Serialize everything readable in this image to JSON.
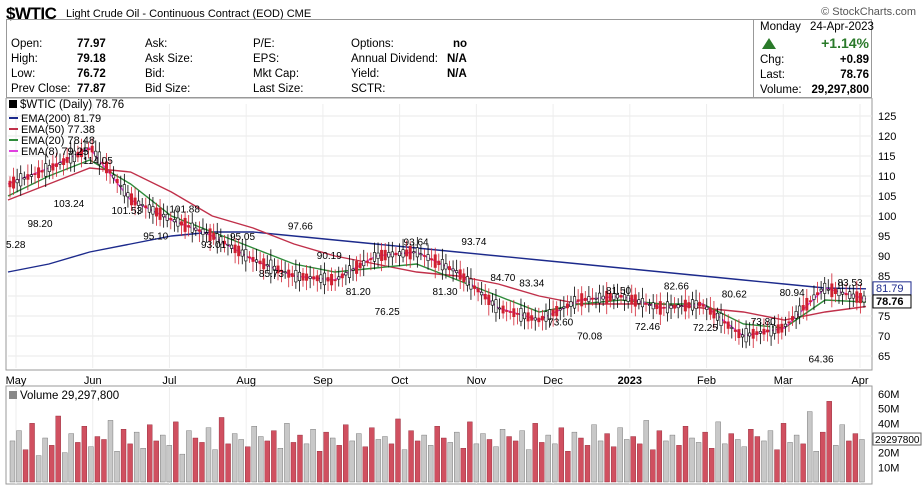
{
  "header": {
    "symbol": "$WTIC",
    "name": "Light Crude Oil - Continuous Contract (EOD)",
    "exchange": "CME",
    "brand": "© StockCharts.com"
  },
  "quote": {
    "labels_col1": [
      "Open:",
      "High:",
      "Low:",
      "Prev Close:"
    ],
    "values_col1": [
      "77.97",
      "79.18",
      "76.72",
      "77.87"
    ],
    "labels_col2": [
      "Ask:",
      "Ask Size:",
      "Bid:",
      "Bid Size:"
    ],
    "labels_col3": [
      "P/E:",
      "EPS:",
      "Mkt Cap:",
      "Last Size:"
    ],
    "labels_col4": [
      "Options:",
      "Annual Dividend:",
      "Yield:",
      "SCTR:"
    ],
    "values_col4": [
      "no",
      "N/A",
      "N/A",
      ""
    ],
    "day": "Monday",
    "date": "24-Apr-2023",
    "pct_change": "+1.14%",
    "chg_label": "Chg:",
    "chg_value": "+0.89",
    "last_label": "Last:",
    "last_value": "78.76",
    "volume_label": "Volume:",
    "volume_value": "29,297,800"
  },
  "legend": {
    "title": "$WTIC (Daily) 78.76",
    "ema200": "EMA(200) 81.79",
    "ema50": "EMA(50) 77.38",
    "ema20": "EMA(20) 78.48",
    "ema8": "EMA(8) 79.25"
  },
  "volume_legend": "Volume 29,297,800",
  "colors": {
    "ema200": "#1c2a8c",
    "ema50": "#c0304a",
    "ema20": "#2e8b3a",
    "ema8": "#e040e0",
    "up_bar": "#c8c8c8",
    "down_bar": "#d05060",
    "candle_up": "#000000",
    "candle_down": "#d02030"
  },
  "chart_data": {
    "type": "line",
    "title": "$WTIC (Daily) 78.76",
    "xlabel": "",
    "ylabel": "",
    "ylim": [
      62,
      128
    ],
    "y_ticks": [
      65,
      70,
      75,
      80,
      85,
      90,
      95,
      100,
      105,
      110,
      115,
      120,
      125
    ],
    "x_ticks": [
      "May",
      "Jun",
      "Jul",
      "Aug",
      "Sep",
      "Oct",
      "Nov",
      "Dec",
      "2023",
      "Feb",
      "Mar",
      "Apr"
    ],
    "price_label": "78.76",
    "ema200_label": "81.79",
    "series": [
      {
        "name": "EMA(200) 81.79",
        "values": [
          86,
          88,
          91,
          93,
          95,
          96,
          96,
          95,
          94,
          93,
          92,
          91,
          90,
          89,
          88,
          87,
          86,
          85,
          84,
          83,
          82,
          81.79
        ]
      },
      {
        "name": "EMA(50) 77.38",
        "values": [
          104,
          108,
          112,
          111,
          106,
          100,
          97,
          93,
          90,
          88,
          86,
          85,
          83,
          80,
          78,
          78,
          78,
          77,
          76,
          74,
          76,
          77.38
        ]
      },
      {
        "name": "EMA(20) 78.48",
        "values": [
          105,
          110,
          114,
          108,
          100,
          96,
          92,
          88,
          86,
          87,
          88,
          84,
          80,
          76,
          78,
          79,
          78,
          78,
          73,
          72,
          79,
          78.48
        ]
      },
      {
        "name": "EMA(8) 79.25",
        "values": [
          108,
          112,
          117,
          104,
          99,
          95,
          89,
          85,
          84,
          90,
          91,
          86,
          77,
          74,
          79,
          80,
          77,
          78,
          70,
          72,
          82,
          79.25
        ]
      }
    ],
    "price_points": [
      {
        "label": "98.20",
        "value": 98.2
      },
      {
        "label": "103.24",
        "value": 103.24
      },
      {
        "label": "114.05",
        "value": 114.05
      },
      {
        "label": "101.53",
        "value": 101.53
      },
      {
        "label": "95.10",
        "value": 95.1
      },
      {
        "label": "101.88",
        "value": 101.88
      },
      {
        "label": "93.01",
        "value": 93.01
      },
      {
        "label": "95.05",
        "value": 95.05
      },
      {
        "label": "85.73",
        "value": 85.73
      },
      {
        "label": "97.66",
        "value": 97.66
      },
      {
        "label": "90.19",
        "value": 90.19
      },
      {
        "label": "81.20",
        "value": 81.2
      },
      {
        "label": "76.25",
        "value": 76.25
      },
      {
        "label": "93.64",
        "value": 93.64
      },
      {
        "label": "81.30",
        "value": 81.3
      },
      {
        "label": "93.74",
        "value": 93.74
      },
      {
        "label": "84.70",
        "value": 84.7
      },
      {
        "label": "83.34",
        "value": 83.34
      },
      {
        "label": "73.60",
        "value": 73.6
      },
      {
        "label": "70.08",
        "value": 70.08
      },
      {
        "label": "81.50",
        "value": 81.5
      },
      {
        "label": "72.46",
        "value": 72.46
      },
      {
        "label": "82.66",
        "value": 82.66
      },
      {
        "label": "72.25",
        "value": 72.25
      },
      {
        "label": "80.62",
        "value": 80.62
      },
      {
        "label": "73.80",
        "value": 73.8
      },
      {
        "label": "80.94",
        "value": 80.94
      },
      {
        "label": "64.36",
        "value": 64.36
      },
      {
        "label": "83.53",
        "value": 83.53
      }
    ],
    "edge_label": "5.28",
    "volume": {
      "ylim": [
        0,
        60
      ],
      "y_ticks": [
        "60M",
        "50M",
        "40M",
        "30M",
        "20M",
        "10M"
      ],
      "last_label": "29297800",
      "bars": [
        28,
        35,
        22,
        40,
        18,
        30,
        25,
        45,
        20,
        33,
        27,
        38,
        24,
        31,
        29,
        42,
        21,
        36,
        26,
        34,
        23,
        39,
        28,
        32,
        25,
        41,
        19,
        35,
        30,
        27,
        37,
        22,
        44,
        26,
        33,
        29,
        24,
        38,
        31,
        28,
        35,
        23,
        40,
        27,
        32,
        26,
        36,
        21,
        34,
        30,
        25,
        39,
        28,
        33,
        24,
        37,
        29,
        31,
        26,
        43,
        22,
        35,
        28,
        32,
        25,
        38,
        30,
        27,
        34,
        23,
        41,
        26,
        33,
        29,
        24,
        36,
        31,
        28,
        35,
        22,
        40,
        27,
        32,
        26,
        37,
        21,
        34,
        30,
        25,
        39,
        28,
        33,
        24,
        37,
        29,
        31,
        26,
        42,
        22,
        35,
        28,
        32,
        25,
        38,
        30,
        27,
        34,
        23,
        41,
        26,
        33,
        29,
        24,
        36,
        31,
        28,
        35,
        22,
        40,
        27,
        32,
        26,
        48,
        21,
        34,
        55,
        25,
        39,
        28,
        33,
        29
      ]
    }
  }
}
